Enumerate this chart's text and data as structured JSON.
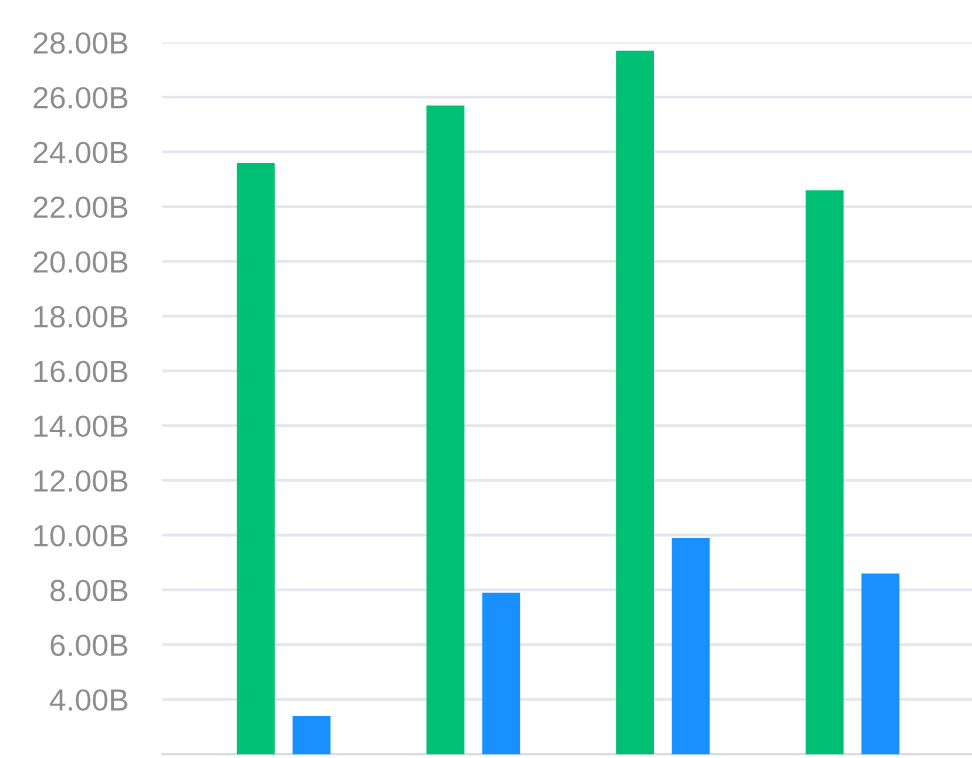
{
  "chart_data": {
    "type": "bar",
    "categories": [
      null,
      null,
      null,
      null
    ],
    "series": [
      {
        "color": "#00c073",
        "values": [
          23.6,
          25.7,
          27.7,
          22.6
        ]
      },
      {
        "color": "#1890ff",
        "values": [
          3.4,
          7.9,
          9.9,
          8.6
        ]
      }
    ],
    "ylim": [
      2,
      28
    ],
    "yticks": [
      {
        "value": 4,
        "label": "4.00B"
      },
      {
        "value": 6,
        "label": "6.00B"
      },
      {
        "value": 8,
        "label": "8.00B"
      },
      {
        "value": 10,
        "label": "10.00B"
      },
      {
        "value": 12,
        "label": "12.00B"
      },
      {
        "value": 14,
        "label": "14.00B"
      },
      {
        "value": 16,
        "label": "16.00B"
      },
      {
        "value": 18,
        "label": "18.00B"
      },
      {
        "value": 20,
        "label": "20.00B"
      },
      {
        "value": 22,
        "label": "22.00B"
      },
      {
        "value": 24,
        "label": "24.00B"
      },
      {
        "value": 26,
        "label": "26.00B"
      },
      {
        "value": 28,
        "label": "28.00B"
      }
    ],
    "grid": "y",
    "tick_labels": "y"
  }
}
